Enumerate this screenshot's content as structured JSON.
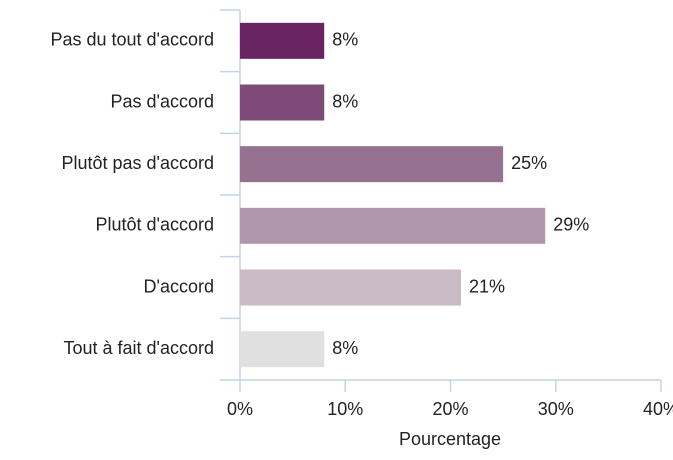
{
  "chart_data": {
    "type": "barh",
    "categories": [
      "Pas du tout d'accord",
      "Pas d'accord",
      "Plutôt pas d'accord",
      "Plutôt d'accord",
      "D'accord",
      "Tout à fait d'accord"
    ],
    "values": [
      8,
      8,
      25,
      29,
      21,
      8
    ],
    "value_labels": [
      "8%",
      "8%",
      "25%",
      "29%",
      "21%",
      "8%"
    ],
    "colors": [
      "#6a2462",
      "#7e4a78",
      "#977190",
      "#b097ab",
      "#c9bac6",
      "#e0e0e0"
    ],
    "xlabel": "Pourcentage",
    "xlim": [
      0,
      40
    ],
    "xticks": [
      {
        "value": 0,
        "label": "0%"
      },
      {
        "value": 10,
        "label": "10%"
      },
      {
        "value": 20,
        "label": "20%"
      },
      {
        "value": 30,
        "label": "30%"
      },
      {
        "value": 40,
        "label": "40%"
      }
    ]
  }
}
